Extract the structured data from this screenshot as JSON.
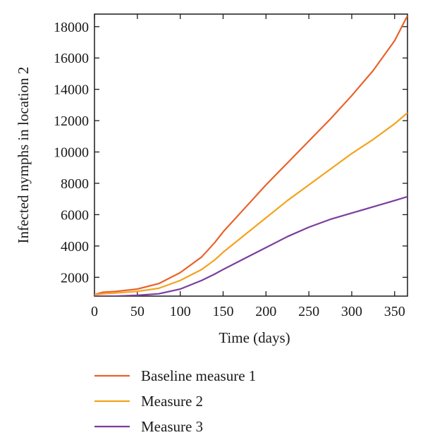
{
  "chart_data": {
    "type": "line",
    "xlabel": "Time (days)",
    "ylabel": "Infected nymphs in location 2",
    "xlim": [
      0,
      365
    ],
    "ylim": [
      800,
      18800
    ],
    "xticks": [
      0,
      50,
      100,
      150,
      200,
      250,
      300,
      350
    ],
    "yticks": [
      2000,
      4000,
      6000,
      8000,
      10000,
      12000,
      14000,
      16000,
      18000
    ],
    "grid": false,
    "legend_position": "bottom",
    "x": [
      0,
      10,
      25,
      50,
      75,
      100,
      125,
      140,
      150,
      175,
      200,
      225,
      250,
      275,
      300,
      325,
      350,
      365
    ],
    "series": [
      {
        "name": "Baseline measure 1",
        "color": "#e8622a",
        "values": [
          900,
          1050,
          1100,
          1250,
          1600,
          2300,
          3300,
          4200,
          4900,
          6400,
          7900,
          9300,
          10700,
          12100,
          13600,
          15200,
          17100,
          18700
        ]
      },
      {
        "name": "Measure 2",
        "color": "#f4a21d",
        "values": [
          900,
          950,
          1000,
          1100,
          1300,
          1800,
          2500,
          3100,
          3600,
          4700,
          5800,
          6900,
          7900,
          8900,
          9900,
          10800,
          11800,
          12500
        ]
      },
      {
        "name": "Measure 3",
        "color": "#7a3e9d",
        "values": [
          800,
          800,
          800,
          850,
          950,
          1250,
          1800,
          2200,
          2500,
          3200,
          3900,
          4600,
          5200,
          5700,
          6100,
          6500,
          6900,
          7150
        ]
      }
    ]
  }
}
